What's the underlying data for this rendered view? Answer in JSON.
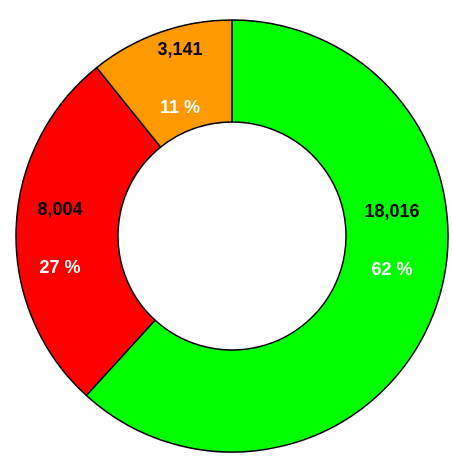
{
  "chart_data": {
    "type": "donut",
    "values": [
      18016,
      8004,
      3141
    ],
    "value_labels": [
      "18,016",
      "8,004",
      "3,141"
    ],
    "percent_labels": [
      "62 %",
      "27 %",
      "11 %"
    ],
    "colors": [
      "#00ff00",
      "#ff0000",
      "#ff9900"
    ]
  }
}
